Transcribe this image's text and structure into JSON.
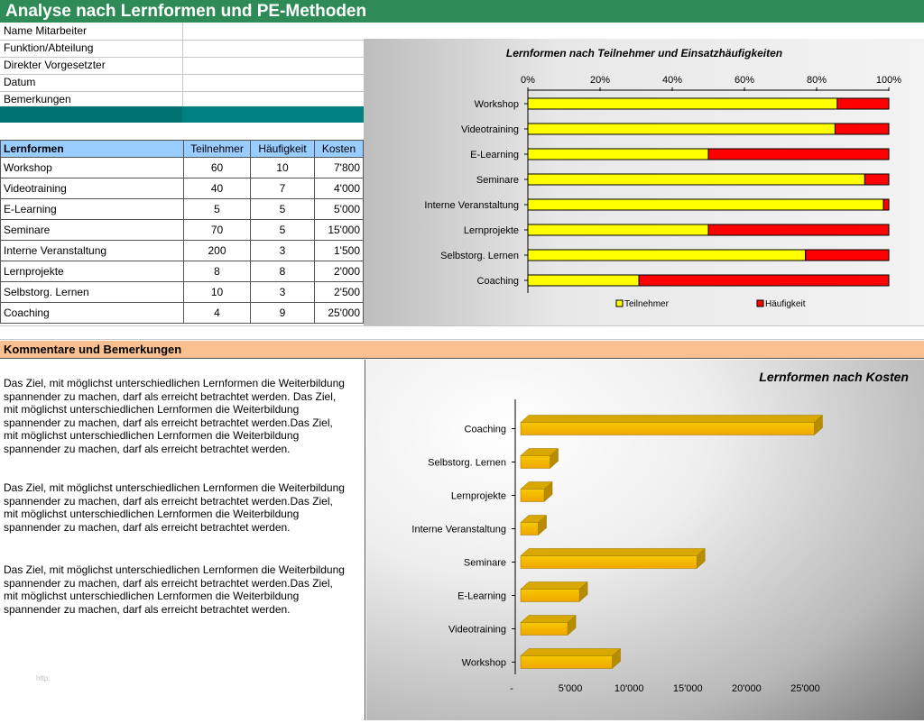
{
  "header": {
    "title": "Analyse nach Lernformen und PE-Methoden"
  },
  "info_fields": [
    "Name Mitarbeiter",
    "Funktion/Abteilung",
    "Direkter Vorgesetzter",
    "Datum",
    "Bemerkungen"
  ],
  "table": {
    "headers": [
      "Lernformen",
      "Teilnehmer",
      "Häufigkeit",
      "Kosten"
    ],
    "rows": [
      {
        "name": "Workshop",
        "teilnehmer": "60",
        "haeufigkeit": "10",
        "kosten": "7'800"
      },
      {
        "name": "Videotraining",
        "teilnehmer": "40",
        "haeufigkeit": "7",
        "kosten": "4'000"
      },
      {
        "name": "E-Learning",
        "teilnehmer": "5",
        "haeufigkeit": "5",
        "kosten": "5'000"
      },
      {
        "name": "Seminare",
        "teilnehmer": "70",
        "haeufigkeit": "5",
        "kosten": "15'000"
      },
      {
        "name": "Interne Veranstaltung",
        "teilnehmer": "200",
        "haeufigkeit": "3",
        "kosten": "1'500"
      },
      {
        "name": "Lernprojekte",
        "teilnehmer": "8",
        "haeufigkeit": "8",
        "kosten": "2'000"
      },
      {
        "name": "Selbstorg. Lernen",
        "teilnehmer": "10",
        "haeufigkeit": "3",
        "kosten": "2'500"
      },
      {
        "name": "Coaching",
        "teilnehmer": "4",
        "haeufigkeit": "9",
        "kosten": "25'000"
      }
    ]
  },
  "comments": {
    "title": "Kommentare und Bemerkungen",
    "paragraphs": [
      "Das Ziel, mit möglichst unterschiedlichen Lernformen die Weiterbildung spannender zu machen, darf als erreicht betrachtet werden. Das Ziel, mit möglichst unterschiedlichen Lernformen die Weiterbildung spannender zu machen, darf als erreicht betrachtet werden.Das Ziel, mit möglichst unterschiedlichen Lernformen die Weiterbildung spannender zu machen, darf als erreicht betrachtet werden.",
      "Das Ziel, mit möglichst unterschiedlichen Lernformen die Weiterbildung spannender zu machen, darf als erreicht betrachtet werden.Das Ziel, mit möglichst unterschiedlichen Lernformen die Weiterbildung spannender zu machen, darf als erreicht betrachtet werden.",
      "Das Ziel, mit möglichst unterschiedlichen Lernformen die Weiterbildung spannender zu machen, darf als erreicht betrachtet werden.Das Ziel, mit möglichst unterschiedlichen Lernformen die Weiterbildung spannender zu machen, darf als erreicht betrachtet werden."
    ],
    "faint_text": "http:"
  },
  "chart_data": [
    {
      "type": "bar",
      "orientation": "horizontal",
      "stacked": "100%",
      "title": "Lernformen nach Teilnehmer und Einsatzhäufigkeiten",
      "categories": [
        "Workshop",
        "Videotraining",
        "E-Learning",
        "Seminare",
        "Interne Veranstaltung",
        "Lernprojekte",
        "Selbstorg. Lernen",
        "Coaching"
      ],
      "series": [
        {
          "name": "Teilnehmer",
          "color": "#ffff00",
          "values": [
            60,
            40,
            5,
            70,
            200,
            8,
            10,
            4
          ]
        },
        {
          "name": "Häufigkeit",
          "color": "#ff0000",
          "values": [
            10,
            7,
            5,
            5,
            3,
            8,
            3,
            9
          ]
        }
      ],
      "x_ticks": [
        "0%",
        "20%",
        "40%",
        "60%",
        "80%",
        "100%"
      ],
      "xlim": [
        0,
        100
      ],
      "legend": "bottom"
    },
    {
      "type": "bar",
      "orientation": "horizontal",
      "style": "3d",
      "title": "Lernformen nach Kosten",
      "categories": [
        "Coaching",
        "Selbstorg. Lernen",
        "Lernprojekte",
        "Interne Veranstaltung",
        "Seminare",
        "E-Learning",
        "Videotraining",
        "Workshop"
      ],
      "values": [
        25000,
        2500,
        2000,
        1500,
        15000,
        5000,
        4000,
        7800
      ],
      "x_ticks": [
        "-",
        "5'000",
        "10'000",
        "15'000",
        "20'000",
        "25'000"
      ],
      "xlim": [
        0,
        27500
      ],
      "color": "#f0b400"
    }
  ]
}
